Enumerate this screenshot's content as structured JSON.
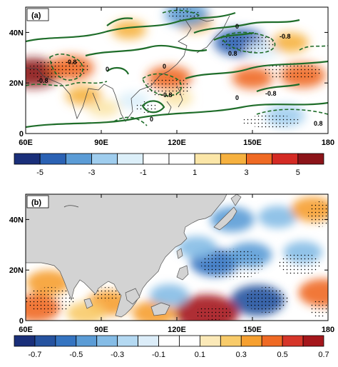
{
  "chart_data": [
    {
      "type": "heatmap",
      "panel_label": "(a)",
      "xlabel": "",
      "ylabel": "",
      "xlim": [
        60,
        180
      ],
      "ylim": [
        0,
        50
      ],
      "x_ticks": [
        60,
        90,
        120,
        150,
        180
      ],
      "x_tick_labels": [
        "60E",
        "90E",
        "120E",
        "150E",
        "180"
      ],
      "y_ticks": [
        0,
        20,
        40
      ],
      "y_tick_labels": [
        "0",
        "20N",
        "40N"
      ],
      "contour_labels": [
        "0",
        "0",
        "0",
        "0",
        "0",
        "-0.8",
        "-0.8",
        "-0.8",
        "-0.8",
        "0.8",
        "0.8",
        "-0.8"
      ],
      "colorbar": {
        "labels": [
          "-5",
          "-3",
          "-1",
          "1",
          "3",
          "5"
        ],
        "colors": [
          "#1a2f7a",
          "#2b62b4",
          "#5b9cd6",
          "#9fcdee",
          "#dceff9",
          "#ffffff",
          "#ffffff",
          "#fbe6a8",
          "#f6b13f",
          "#ef6a24",
          "#d42a24",
          "#8c1419"
        ]
      },
      "anomalies": [
        {
          "lon": 63,
          "lat": 24,
          "value": 5.2
        },
        {
          "lon": 78,
          "lat": 26,
          "value": 3.8
        },
        {
          "lon": 83,
          "lat": 15,
          "value": 2.2
        },
        {
          "lon": 101,
          "lat": 41,
          "value": 2.0
        },
        {
          "lon": 117,
          "lat": 22,
          "value": 3.6
        },
        {
          "lon": 120,
          "lat": 14,
          "value": 1.6
        },
        {
          "lon": 127,
          "lat": 44,
          "value": 2.2
        },
        {
          "lon": 124,
          "lat": 47,
          "value": -3.6
        },
        {
          "lon": 145,
          "lat": 36,
          "value": -4.8
        },
        {
          "lon": 154,
          "lat": 33,
          "value": -1.8
        },
        {
          "lon": 165,
          "lat": 36,
          "value": 2.4
        },
        {
          "lon": 150,
          "lat": 22,
          "value": 3.0
        },
        {
          "lon": 170,
          "lat": 23,
          "value": 3.8
        },
        {
          "lon": 163,
          "lat": 7,
          "value": -2.8
        },
        {
          "lon": 103,
          "lat": 13,
          "value": -1.6
        },
        {
          "lon": 91,
          "lat": 10,
          "value": 1.6
        }
      ]
    },
    {
      "type": "heatmap",
      "panel_label": "(b)",
      "xlabel": "",
      "ylabel": "",
      "xlim": [
        60,
        180
      ],
      "ylim": [
        0,
        50
      ],
      "x_ticks": [
        60,
        90,
        120,
        150,
        180
      ],
      "x_tick_labels": [
        "60E",
        "90E",
        "120E",
        "150E",
        "180"
      ],
      "y_ticks": [
        0,
        20,
        40
      ],
      "y_tick_labels": [
        "0",
        "20N",
        "40N"
      ],
      "colorbar": {
        "labels": [
          "-0.7",
          "-0.5",
          "-0.3",
          "-0.1",
          "0.1",
          "0.3",
          "0.5",
          "0.7"
        ],
        "colors": [
          "#1a2f7a",
          "#2653a0",
          "#3574c1",
          "#5b9cd6",
          "#85bce6",
          "#b4d9f2",
          "#dcedf9",
          "#ffffff",
          "#ffffff",
          "#fbe9b8",
          "#f8cb6a",
          "#f6a030",
          "#ef6a24",
          "#d6362a",
          "#a5171c"
        ]
      },
      "anomalies": [
        {
          "lon": 135,
          "lat": 23,
          "value": -0.5
        },
        {
          "lon": 149,
          "lat": 26,
          "value": -0.4
        },
        {
          "lon": 152,
          "lat": 8,
          "value": -0.6
        },
        {
          "lon": 142,
          "lat": 40,
          "value": -0.4
        },
        {
          "lon": 160,
          "lat": 41,
          "value": -0.3
        },
        {
          "lon": 170,
          "lat": 27,
          "value": -0.3
        },
        {
          "lon": 128,
          "lat": 29,
          "value": -0.3
        },
        {
          "lon": 174,
          "lat": 44,
          "value": 0.4
        },
        {
          "lon": 178,
          "lat": 11,
          "value": 0.5
        },
        {
          "lon": 132,
          "lat": 3,
          "value": 0.8
        },
        {
          "lon": 111,
          "lat": 3,
          "value": 0.4
        },
        {
          "lon": 93,
          "lat": 7,
          "value": 0.4
        },
        {
          "lon": 64,
          "lat": 5,
          "value": 0.5
        },
        {
          "lon": 69,
          "lat": 15,
          "value": 0.4
        },
        {
          "lon": 84,
          "lat": 3,
          "value": 0.3
        },
        {
          "lon": 117,
          "lat": 10,
          "value": -0.3
        }
      ]
    }
  ]
}
